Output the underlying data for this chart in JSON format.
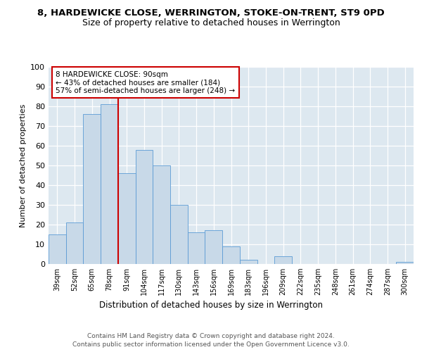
{
  "title1": "8, HARDEWICKE CLOSE, WERRINGTON, STOKE-ON-TRENT, ST9 0PD",
  "title2": "Size of property relative to detached houses in Werrington",
  "xlabel": "Distribution of detached houses by size in Werrington",
  "ylabel": "Number of detached properties",
  "categories": [
    "39sqm",
    "52sqm",
    "65sqm",
    "78sqm",
    "91sqm",
    "104sqm",
    "117sqm",
    "130sqm",
    "143sqm",
    "156sqm",
    "169sqm",
    "183sqm",
    "196sqm",
    "209sqm",
    "222sqm",
    "235sqm",
    "248sqm",
    "261sqm",
    "274sqm",
    "287sqm",
    "300sqm"
  ],
  "bar_heights": [
    15,
    21,
    76,
    81,
    46,
    58,
    50,
    30,
    16,
    17,
    9,
    2,
    0,
    4,
    0,
    0,
    0,
    0,
    0,
    0,
    1
  ],
  "bar_color": "#c8d9e8",
  "bar_edge_color": "#5b9bd5",
  "property_line_color": "#cc0000",
  "annotation_text": "8 HARDEWICKE CLOSE: 90sqm\n← 43% of detached houses are smaller (184)\n57% of semi-detached houses are larger (248) →",
  "annotation_box_color": "#cc0000",
  "ylim": [
    0,
    100
  ],
  "yticks": [
    0,
    10,
    20,
    30,
    40,
    50,
    60,
    70,
    80,
    90,
    100
  ],
  "footer": "Contains HM Land Registry data © Crown copyright and database right 2024.\nContains public sector information licensed under the Open Government Licence v3.0.",
  "bg_color": "#dde8f0",
  "title1_fontsize": 9.5,
  "title2_fontsize": 9,
  "bin_width": 13
}
